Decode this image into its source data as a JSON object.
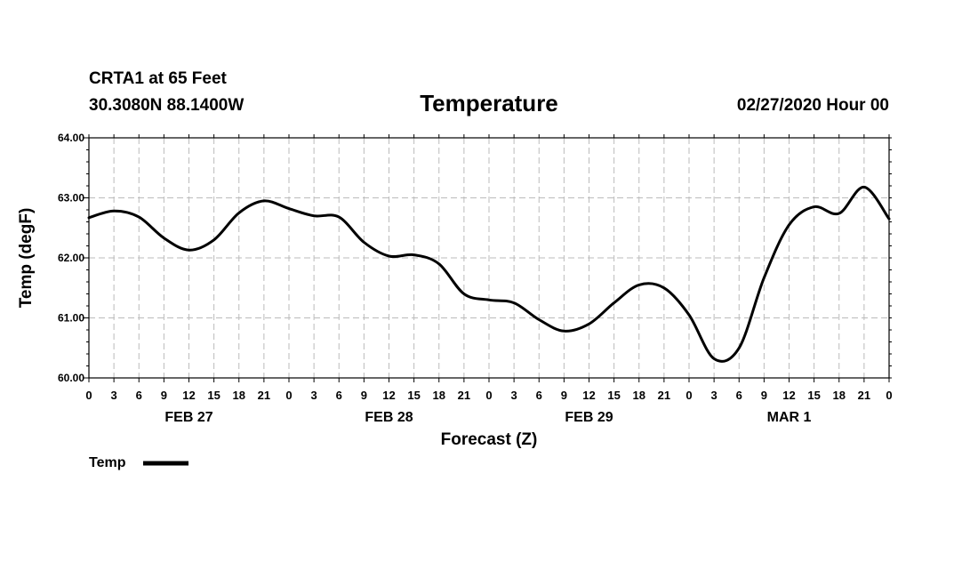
{
  "header": {
    "station": "CRTA1 at 65 Feet",
    "coords": "30.3080N 88.1400W",
    "issued": "02/27/2020 Hour 00"
  },
  "chart_data": {
    "type": "line",
    "title": "Temperature",
    "xlabel": "Forecast (Z)",
    "ylabel": "Temp (degF)",
    "ylim": [
      60.0,
      64.0
    ],
    "xlim_hours": [
      0,
      96
    ],
    "grid": true,
    "y_ticks": [
      "60.00",
      "61.00",
      "62.00",
      "63.00",
      "64.00"
    ],
    "x_tick_labels": [
      "0",
      "3",
      "6",
      "9",
      "12",
      "15",
      "18",
      "21",
      "0",
      "3",
      "6",
      "9",
      "12",
      "15",
      "18",
      "21",
      "0",
      "3",
      "6",
      "9",
      "12",
      "15",
      "18",
      "21",
      "0",
      "3",
      "6",
      "9",
      "12",
      "15",
      "18",
      "21",
      "0"
    ],
    "day_labels": [
      {
        "label": "FEB 27",
        "hour": 12
      },
      {
        "label": "FEB 28",
        "hour": 36
      },
      {
        "label": "FEB 29",
        "hour": 60
      },
      {
        "label": "MAR 1",
        "hour": 84
      }
    ],
    "legend": {
      "position": "bottom-left",
      "entries": [
        "Temp"
      ]
    },
    "series": [
      {
        "name": "Temp",
        "color": "#000000",
        "x": [
          0,
          3,
          6,
          9,
          12,
          15,
          18,
          21,
          24,
          27,
          30,
          33,
          36,
          39,
          42,
          45,
          48,
          51,
          54,
          57,
          60,
          63,
          66,
          69,
          72,
          75,
          78,
          81,
          84,
          87,
          90,
          93,
          96
        ],
        "values": [
          62.67,
          62.78,
          62.68,
          62.33,
          62.13,
          62.3,
          62.75,
          62.95,
          62.82,
          62.7,
          62.68,
          62.26,
          62.03,
          62.05,
          61.9,
          61.4,
          61.3,
          61.25,
          60.97,
          60.78,
          60.9,
          61.25,
          61.55,
          61.5,
          61.05,
          60.32,
          60.5,
          61.67,
          62.55,
          62.85,
          62.74,
          63.18,
          62.65
        ]
      }
    ]
  }
}
